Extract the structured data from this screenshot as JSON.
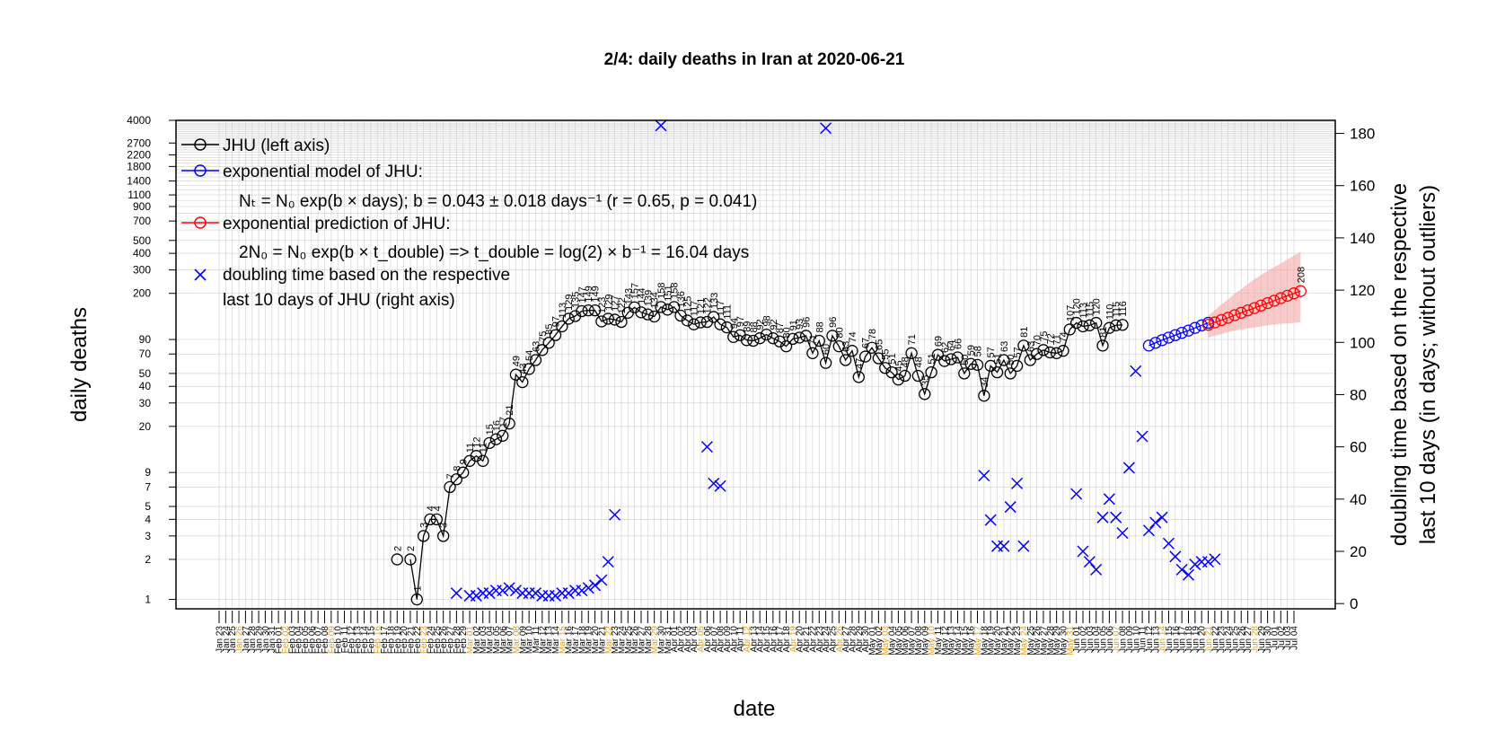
{
  "chart_data": {
    "type": "line",
    "title": "2/4: daily deaths in Iran at 2020-06-21",
    "xlabel": "date",
    "ylabel": "daily deaths",
    "ylabel_right": [
      "doubling time based on the respective",
      "last 10 days (in days; without outliers)"
    ],
    "y_scale": "log",
    "ylim": [
      0.85,
      4000
    ],
    "y_ticks": [
      "1",
      "2",
      "3",
      "4",
      "5",
      "7",
      "9",
      "20",
      "30",
      "40",
      "50",
      "70",
      "90",
      "200",
      "300",
      "400",
      "500",
      "700",
      "900",
      "1100",
      "1400",
      "1800",
      "2200",
      "2700",
      "4000"
    ],
    "y2lim": [
      -2,
      185
    ],
    "y2_ticks": [
      "0",
      "20",
      "40",
      "60",
      "80",
      "100",
      "120",
      "140",
      "160",
      "180"
    ],
    "grid": true,
    "legend_position": "top-left",
    "x_start": "2020-01-23",
    "x_end": "2020-07-04",
    "highlight_dates": [
      "2020-01-26",
      "2020-02-02",
      "2020-02-09",
      "2020-02-16",
      "2020-02-23",
      "2020-03-01",
      "2020-03-08",
      "2020-03-15",
      "2020-03-22",
      "2020-03-29",
      "2020-04-05",
      "2020-04-12",
      "2020-04-19",
      "2020-04-26",
      "2020-05-03",
      "2020-05-10",
      "2020-05-17",
      "2020-05-24",
      "2020-05-31",
      "2020-06-07",
      "2020-06-14",
      "2020-06-21",
      "2020-06-28"
    ],
    "jhu": {
      "start": "2020-02-19",
      "values": [
        2,
        null,
        2,
        1,
        3,
        4,
        4,
        3,
        7,
        8,
        9,
        11,
        12,
        11,
        15,
        16,
        17,
        21,
        49,
        43,
        54,
        63,
        75,
        85,
        97,
        113,
        129,
        135,
        147,
        149,
        149,
        123,
        129,
        127,
        122,
        143,
        157,
        144,
        139,
        134,
        158,
        151,
        158,
        136,
        125,
        117,
        121,
        122,
        133,
        117,
        111,
        94,
        97,
        89,
        88,
        92,
        98,
        92,
        87,
        80,
        91,
        93,
        96,
        71,
        88,
        60,
        96,
        80,
        63,
        74,
        47,
        67,
        78,
        65,
        55,
        51,
        45,
        48,
        71,
        48,
        35,
        51,
        69,
        62,
        64,
        66,
        50,
        59,
        58,
        34,
        57,
        51,
        63,
        50,
        57,
        81,
        63,
        70,
        75,
        72,
        71,
        74,
        107,
        120,
        113,
        115,
        120,
        81,
        110,
        115,
        116
      ],
      "labels": [
        "2",
        "",
        "2",
        "1",
        "3",
        "4",
        "4",
        "3",
        "7",
        "8",
        "9",
        "11",
        "12",
        "11",
        "15",
        "16",
        "17",
        "21",
        "49",
        "43",
        "54",
        "63",
        "75",
        "85",
        "97",
        "113",
        "129",
        "135",
        "147",
        "149",
        "149",
        "123",
        "129",
        "127",
        "122",
        "143",
        "157",
        "144",
        "139",
        "134",
        "158",
        "151",
        "158",
        "136",
        "125",
        "117",
        "121",
        "122",
        "133",
        "117",
        "111",
        "94",
        "97",
        "89",
        "88",
        "92",
        "98",
        "92",
        "87",
        "80",
        "91",
        "93",
        "96",
        "71",
        "88",
        "60",
        "96",
        "80",
        "63",
        "74",
        "47",
        "67",
        "78",
        "65",
        "55",
        "51",
        "45",
        "48",
        "71",
        "48",
        "35",
        "51",
        "69",
        "62",
        "64",
        "66",
        "50",
        "59",
        "58",
        "34",
        "57",
        "51",
        "63",
        "50",
        "57",
        "81",
        "63",
        "70",
        "75",
        "72",
        "71",
        "74",
        "107",
        "120",
        "113",
        "115",
        "120",
        "81",
        "110",
        "115",
        "116"
      ]
    },
    "model": {
      "start": "2020-06-12",
      "values": [
        81,
        85,
        89,
        93,
        97,
        101,
        105,
        110,
        115,
        120
      ]
    },
    "prediction": {
      "start": "2020-06-21",
      "values": [
        116,
        121,
        126,
        131,
        137,
        143,
        149,
        155,
        162,
        169,
        176,
        184,
        192,
        200,
        208
      ],
      "labels": [
        "",
        "",
        "",
        "",
        "",
        "",
        "",
        "",
        "",
        "",
        "",
        "",
        "",
        "",
        "208"
      ],
      "band_low": [
        93,
        96,
        99,
        102,
        105,
        107,
        109,
        111,
        113,
        115,
        117,
        118,
        119,
        120,
        121
      ],
      "band_high": [
        136,
        150,
        165,
        180,
        198,
        215,
        235,
        255,
        275,
        295,
        315,
        335,
        360,
        385,
        410
      ]
    },
    "doubling_time": [
      {
        "date": "2020-02-28",
        "value": 4
      },
      {
        "date": "2020-03-01",
        "value": 3
      },
      {
        "date": "2020-03-02",
        "value": 3
      },
      {
        "date": "2020-03-03",
        "value": 4
      },
      {
        "date": "2020-03-04",
        "value": 4
      },
      {
        "date": "2020-03-05",
        "value": 5
      },
      {
        "date": "2020-03-06",
        "value": 5
      },
      {
        "date": "2020-03-07",
        "value": 6
      },
      {
        "date": "2020-03-08",
        "value": 5
      },
      {
        "date": "2020-03-09",
        "value": 4
      },
      {
        "date": "2020-03-10",
        "value": 4
      },
      {
        "date": "2020-03-11",
        "value": 4
      },
      {
        "date": "2020-03-12",
        "value": 3
      },
      {
        "date": "2020-03-13",
        "value": 3
      },
      {
        "date": "2020-03-14",
        "value": 3
      },
      {
        "date": "2020-03-15",
        "value": 4
      },
      {
        "date": "2020-03-16",
        "value": 4
      },
      {
        "date": "2020-03-17",
        "value": 5
      },
      {
        "date": "2020-03-18",
        "value": 5
      },
      {
        "date": "2020-03-19",
        "value": 6
      },
      {
        "date": "2020-03-20",
        "value": 7
      },
      {
        "date": "2020-03-21",
        "value": 9
      },
      {
        "date": "2020-03-22",
        "value": 16
      },
      {
        "date": "2020-03-23",
        "value": 34
      },
      {
        "date": "2020-03-30",
        "value": 183
      },
      {
        "date": "2020-04-06",
        "value": 60
      },
      {
        "date": "2020-04-07",
        "value": 46
      },
      {
        "date": "2020-04-08",
        "value": 45
      },
      {
        "date": "2020-04-24",
        "value": 182
      },
      {
        "date": "2020-05-18",
        "value": 49
      },
      {
        "date": "2020-05-19",
        "value": 32
      },
      {
        "date": "2020-05-20",
        "value": 22
      },
      {
        "date": "2020-05-21",
        "value": 22
      },
      {
        "date": "2020-05-22",
        "value": 37
      },
      {
        "date": "2020-05-23",
        "value": 46
      },
      {
        "date": "2020-05-24",
        "value": 22
      },
      {
        "date": "2020-06-01",
        "value": 42
      },
      {
        "date": "2020-06-02",
        "value": 20
      },
      {
        "date": "2020-06-03",
        "value": 16
      },
      {
        "date": "2020-06-04",
        "value": 13
      },
      {
        "date": "2020-06-05",
        "value": 33
      },
      {
        "date": "2020-06-06",
        "value": 40
      },
      {
        "date": "2020-06-07",
        "value": 33
      },
      {
        "date": "2020-06-08",
        "value": 27
      },
      {
        "date": "2020-06-09",
        "value": 52
      },
      {
        "date": "2020-06-10",
        "value": 89
      },
      {
        "date": "2020-06-11",
        "value": 64
      },
      {
        "date": "2020-06-12",
        "value": 28
      },
      {
        "date": "2020-06-13",
        "value": 31
      },
      {
        "date": "2020-06-14",
        "value": 33
      },
      {
        "date": "2020-06-15",
        "value": 23
      },
      {
        "date": "2020-06-16",
        "value": 18
      },
      {
        "date": "2020-06-17",
        "value": 13
      },
      {
        "date": "2020-06-18",
        "value": 11
      },
      {
        "date": "2020-06-19",
        "value": 15
      },
      {
        "date": "2020-06-20",
        "value": 16
      },
      {
        "date": "2020-06-21",
        "value": 16
      },
      {
        "date": "2020-06-22",
        "value": 17
      }
    ],
    "legend": {
      "jhu": "JHU (left axis)",
      "model": "exponential model of JHU:",
      "model_eq": "Nₜ = N₀ exp(b × days); b = 0.043 ± 0.018 days⁻¹ (r = 0.65, p = 0.041)",
      "prediction": "exponential prediction of JHU:",
      "prediction_eq": "2N₀ = N₀ exp(b × t_double) => t_double = log(2) × b⁻¹ = 16.04 days",
      "doubling_1": "doubling time based on the respective",
      "doubling_2": "last 10 days of JHU (right axis)"
    },
    "colors": {
      "jhu": "#000000",
      "model": "#0000ff",
      "prediction": "#ff0000",
      "band": "#f4a6a6",
      "grid": "#d3d3d3",
      "date_black": "#000000",
      "date_highlight": "#e0a020"
    }
  }
}
